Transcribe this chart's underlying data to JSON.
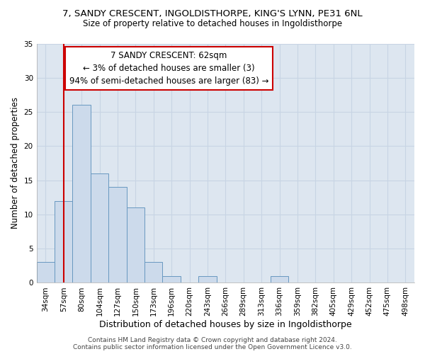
{
  "title_line1": "7, SANDY CRESCENT, INGOLDISTHORPE, KING'S LYNN, PE31 6NL",
  "title_line2": "Size of property relative to detached houses in Ingoldisthorpe",
  "xlabel": "Distribution of detached houses by size in Ingoldisthorpe",
  "ylabel": "Number of detached properties",
  "categories": [
    "34sqm",
    "57sqm",
    "80sqm",
    "104sqm",
    "127sqm",
    "150sqm",
    "173sqm",
    "196sqm",
    "220sqm",
    "243sqm",
    "266sqm",
    "289sqm",
    "313sqm",
    "336sqm",
    "359sqm",
    "382sqm",
    "405sqm",
    "429sqm",
    "452sqm",
    "475sqm",
    "498sqm"
  ],
  "values": [
    3,
    12,
    26,
    16,
    14,
    11,
    3,
    1,
    0,
    1,
    0,
    0,
    0,
    1,
    0,
    0,
    0,
    0,
    0,
    0,
    0
  ],
  "bar_color": "#ccdaeb",
  "bar_edge_color": "#6898c0",
  "bar_edge_width": 0.7,
  "red_line_x": 1.0,
  "red_line_color": "#cc0000",
  "annotation_text": "7 SANDY CRESCENT: 62sqm\n← 3% of detached houses are smaller (3)\n94% of semi-detached houses are larger (83) →",
  "annotation_box_color": "#ffffff",
  "annotation_box_edge_color": "#cc0000",
  "annotation_box_edge_width": 1.5,
  "ylim": [
    0,
    35
  ],
  "yticks": [
    0,
    5,
    10,
    15,
    20,
    25,
    30,
    35
  ],
  "grid_color": "#c8d4e4",
  "bg_color": "#dde6f0",
  "footer_text": "Contains HM Land Registry data © Crown copyright and database right 2024.\nContains public sector information licensed under the Open Government Licence v3.0.",
  "title_fontsize": 9.5,
  "subtitle_fontsize": 8.5,
  "xlabel_fontsize": 9,
  "ylabel_fontsize": 8.5,
  "tick_fontsize": 7.5,
  "annotation_fontsize": 8.5,
  "footer_fontsize": 6.5
}
